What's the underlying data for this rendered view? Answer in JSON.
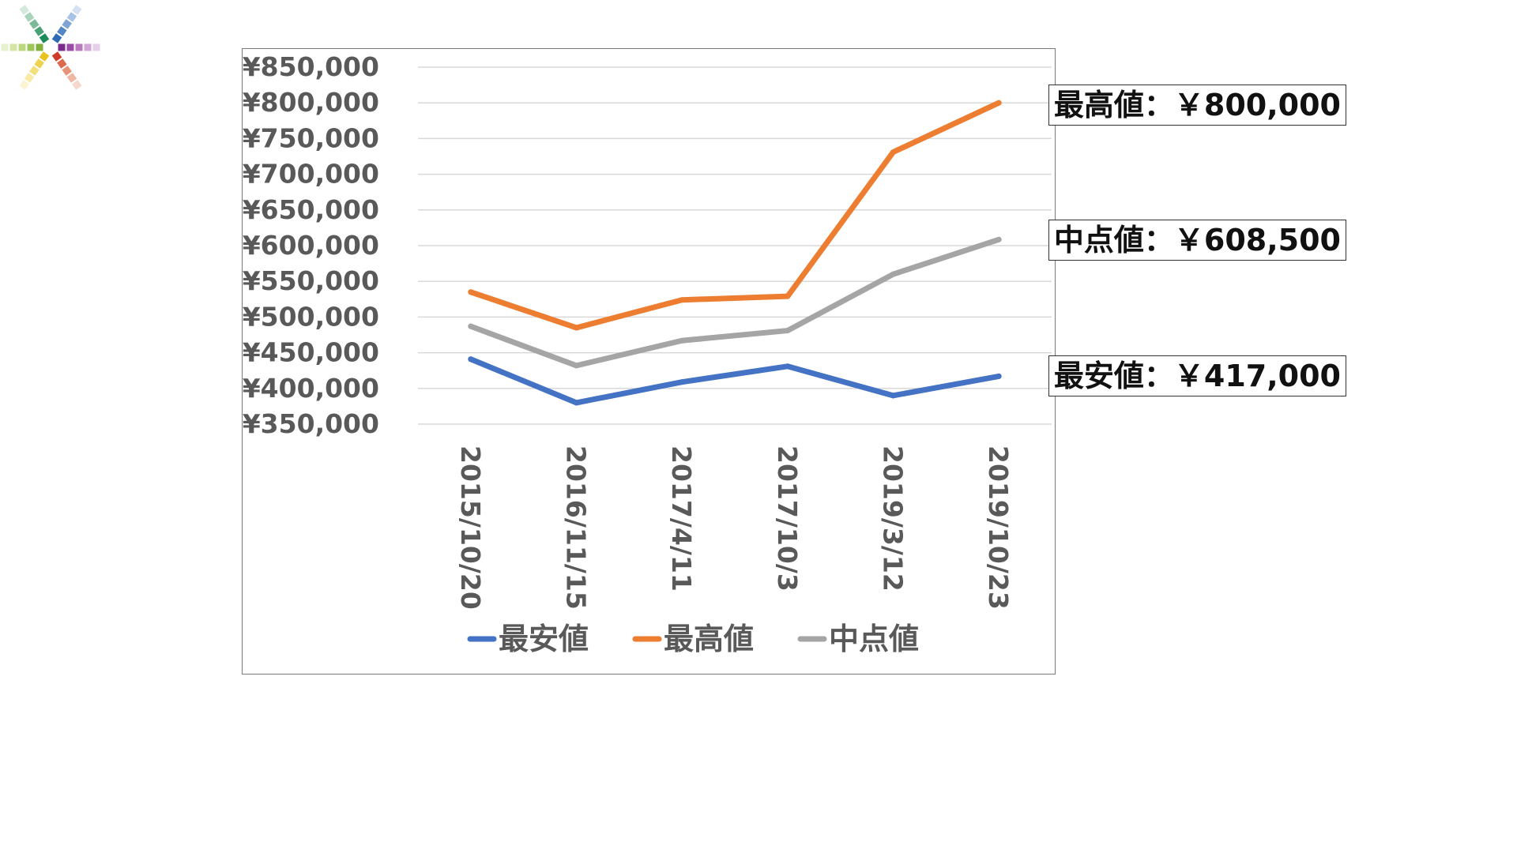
{
  "logo": {
    "icon": "color-burst-logo-icon"
  },
  "chart_data": {
    "type": "line",
    "x": [
      "2015/10/20",
      "2016/11/15",
      "2017/4/11",
      "2017/10/3",
      "2019/3/12",
      "2019/10/23"
    ],
    "series": [
      {
        "name": "最安値",
        "color": "#4472c4",
        "values": [
          441000,
          380000,
          409000,
          431000,
          390000,
          417000
        ]
      },
      {
        "name": "最高値",
        "color": "#ed7d31",
        "values": [
          535000,
          485000,
          524000,
          529000,
          731000,
          800000
        ]
      },
      {
        "name": "中点値",
        "color": "#a5a5a5",
        "values": [
          487000,
          432000,
          467000,
          481000,
          560000,
          608500
        ]
      }
    ],
    "ylim": [
      350000,
      850000
    ],
    "yticks": [
      350000,
      400000,
      450000,
      500000,
      550000,
      600000,
      650000,
      700000,
      750000,
      800000,
      850000
    ],
    "ytick_labels": [
      "¥350,000",
      "¥400,000",
      "¥450,000",
      "¥500,000",
      "¥550,000",
      "¥600,000",
      "¥650,000",
      "¥700,000",
      "¥750,000",
      "¥800,000",
      "¥850,000"
    ],
    "grid": true,
    "legend_position": "bottom",
    "annotations": [
      {
        "series": "最高値",
        "text": "最高値：￥800,000"
      },
      {
        "series": "中点値",
        "text": "中点値：￥608,500"
      },
      {
        "series": "最安値",
        "text": "最安値：￥417,000"
      }
    ]
  }
}
